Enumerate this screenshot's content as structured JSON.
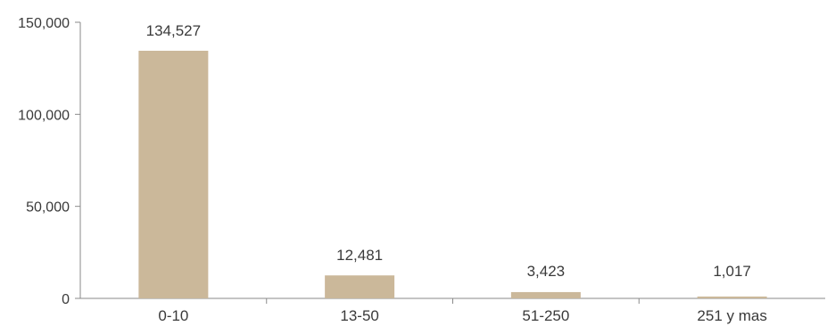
{
  "chart_data": {
    "type": "bar",
    "categories": [
      "0-10",
      "13-50",
      "51-250",
      "251 y mas"
    ],
    "values": [
      134527,
      12481,
      3423,
      1017
    ],
    "value_labels": [
      "134,527",
      "12,481",
      "3,423",
      "1,017"
    ],
    "title": "",
    "xlabel": "",
    "ylabel": "",
    "ylim": [
      0,
      150000
    ],
    "yticks": [
      0,
      50000,
      100000,
      150000
    ],
    "ytick_labels": [
      "0",
      "50,000",
      "100,000",
      "150,000"
    ],
    "bar_color": "#cbb89a",
    "grid": false,
    "legend": "none"
  }
}
